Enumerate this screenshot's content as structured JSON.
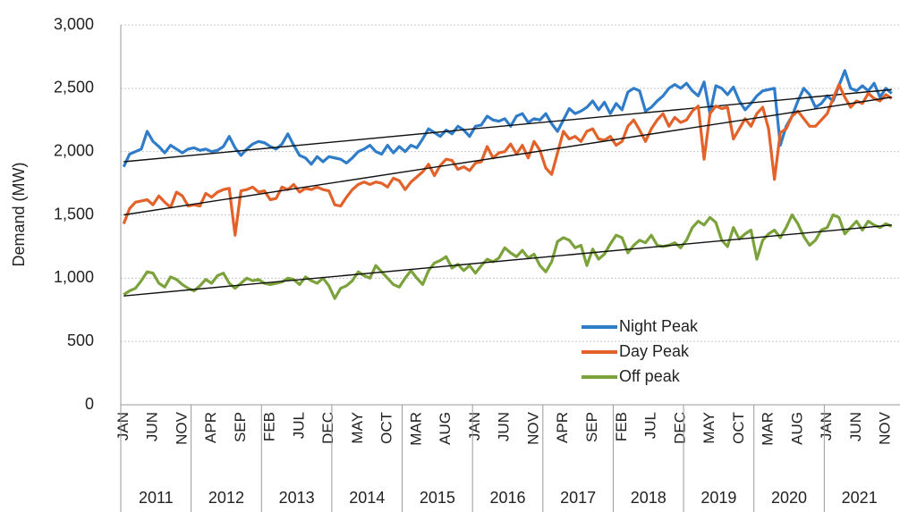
{
  "chart_data": {
    "type": "line",
    "y_label": "Demand (MW)",
    "categories": [
      "JAN",
      null,
      null,
      null,
      null,
      "JUN",
      null,
      null,
      null,
      null,
      "NOV",
      null,
      null,
      null,
      null,
      "APR",
      null,
      null,
      null,
      null,
      "SEP",
      null,
      null,
      null,
      null,
      "FEB",
      null,
      null,
      null,
      null,
      "JUL",
      null,
      null,
      null,
      null,
      "DEC",
      null,
      null,
      null,
      null,
      "MAY",
      null,
      null,
      null,
      null,
      "OCT",
      null,
      null,
      null,
      null,
      "MAR",
      null,
      null,
      null,
      null,
      "AUG",
      null,
      null,
      null,
      null,
      "JAN",
      null,
      null,
      null,
      null,
      "JUN",
      null,
      null,
      null,
      null,
      "NOV",
      null,
      null,
      null,
      null,
      "APR",
      null,
      null,
      null,
      null,
      "SEP",
      null,
      null,
      null,
      null,
      "FEB",
      null,
      null,
      null,
      null,
      "JUL",
      null,
      null,
      null,
      null,
      "DEC",
      null,
      null,
      null,
      null,
      "MAY",
      null,
      null,
      null,
      null,
      "OCT",
      null,
      null,
      null,
      null,
      "MAR",
      null,
      null,
      null,
      null,
      "AUG",
      null,
      null,
      null,
      null,
      "JAN",
      null,
      null,
      null,
      null,
      "JUN",
      null,
      null,
      null,
      null,
      "NOV",
      null
    ],
    "year_groups": [
      "2011",
      "2012",
      "2013",
      "2014",
      "2015",
      "2016",
      "2017",
      "2018",
      "2019",
      "2020",
      "2021"
    ],
    "series": [
      {
        "name": "Night Peak",
        "color": "#2f7cc9",
        "trendline": [
          1920,
          2490
        ],
        "values": [
          1880,
          1980,
          2000,
          2020,
          2160,
          2080,
          2040,
          1990,
          2050,
          2020,
          1990,
          2020,
          2030,
          2010,
          2020,
          2000,
          2010,
          2040,
          2120,
          2030,
          1970,
          2020,
          2060,
          2080,
          2070,
          2040,
          2020,
          2060,
          2140,
          2050,
          1970,
          1950,
          1900,
          1960,
          1920,
          1960,
          1950,
          1940,
          1910,
          1950,
          2000,
          2020,
          2050,
          2000,
          1980,
          2050,
          1990,
          2040,
          2000,
          2050,
          2030,
          2100,
          2180,
          2150,
          2120,
          2170,
          2140,
          2200,
          2170,
          2120,
          2200,
          2210,
          2280,
          2250,
          2240,
          2260,
          2200,
          2280,
          2300,
          2230,
          2260,
          2250,
          2300,
          2220,
          2160,
          2250,
          2340,
          2300,
          2320,
          2350,
          2400,
          2330,
          2390,
          2300,
          2380,
          2330,
          2470,
          2500,
          2480,
          2320,
          2350,
          2400,
          2440,
          2500,
          2530,
          2500,
          2540,
          2480,
          2440,
          2550,
          2300,
          2520,
          2500,
          2450,
          2510,
          2400,
          2330,
          2380,
          2440,
          2480,
          2490,
          2500,
          2050,
          2200,
          2280,
          2400,
          2500,
          2450,
          2350,
          2380,
          2440,
          2400,
          2520,
          2640,
          2500,
          2480,
          2520,
          2480,
          2540,
          2430,
          2500,
          2460
        ]
      },
      {
        "name": "Day Peak",
        "color": "#e2622a",
        "trendline": [
          1500,
          2430
        ],
        "values": [
          1430,
          1550,
          1600,
          1610,
          1620,
          1580,
          1650,
          1600,
          1560,
          1680,
          1650,
          1570,
          1580,
          1570,
          1670,
          1640,
          1680,
          1700,
          1710,
          1340,
          1690,
          1700,
          1720,
          1680,
          1690,
          1620,
          1630,
          1720,
          1700,
          1740,
          1680,
          1710,
          1700,
          1720,
          1700,
          1690,
          1580,
          1570,
          1640,
          1700,
          1740,
          1760,
          1740,
          1760,
          1750,
          1720,
          1790,
          1770,
          1700,
          1760,
          1800,
          1840,
          1900,
          1810,
          1890,
          1940,
          1930,
          1860,
          1880,
          1850,
          1910,
          1920,
          2040,
          1950,
          1990,
          2000,
          2060,
          1980,
          2050,
          1950,
          2080,
          2010,
          1870,
          1820,
          1990,
          2160,
          2100,
          2120,
          2080,
          2160,
          2180,
          2100,
          2090,
          2120,
          2050,
          2080,
          2200,
          2250,
          2170,
          2080,
          2180,
          2250,
          2300,
          2200,
          2270,
          2230,
          2250,
          2320,
          2360,
          1940,
          2300,
          2360,
          2340,
          2350,
          2100,
          2180,
          2260,
          2200,
          2300,
          2350,
          2180,
          1780,
          2150,
          2180,
          2280,
          2320,
          2260,
          2200,
          2200,
          2250,
          2300,
          2420,
          2530,
          2430,
          2350,
          2400,
          2380,
          2460,
          2420,
          2400,
          2450,
          2420
        ]
      },
      {
        "name": "Off peak",
        "color": "#7ba23b",
        "trendline": [
          860,
          1420
        ],
        "values": [
          870,
          900,
          920,
          980,
          1050,
          1040,
          960,
          930,
          1010,
          990,
          950,
          920,
          900,
          940,
          990,
          960,
          1020,
          1040,
          960,
          920,
          960,
          1000,
          980,
          990,
          960,
          950,
          960,
          970,
          1000,
          990,
          950,
          1010,
          980,
          960,
          1000,
          940,
          840,
          920,
          940,
          980,
          1050,
          1020,
          1000,
          1100,
          1050,
          1000,
          950,
          930,
          1000,
          1060,
          1000,
          950,
          1060,
          1120,
          1140,
          1170,
          1080,
          1110,
          1060,
          1100,
          1040,
          1100,
          1150,
          1130,
          1160,
          1240,
          1200,
          1170,
          1220,
          1160,
          1190,
          1100,
          1050,
          1130,
          1290,
          1320,
          1300,
          1240,
          1260,
          1100,
          1230,
          1150,
          1190,
          1270,
          1340,
          1320,
          1200,
          1260,
          1300,
          1280,
          1340,
          1260,
          1250,
          1260,
          1280,
          1240,
          1300,
          1400,
          1450,
          1420,
          1480,
          1440,
          1300,
          1250,
          1400,
          1310,
          1350,
          1380,
          1150,
          1300,
          1350,
          1380,
          1320,
          1400,
          1500,
          1430,
          1330,
          1260,
          1300,
          1380,
          1400,
          1500,
          1480,
          1350,
          1400,
          1450,
          1380,
          1450,
          1420,
          1400,
          1430,
          1410
        ]
      }
    ],
    "ylim": [
      0,
      3000
    ],
    "yticks": [
      0,
      500,
      {
        "value": 1000,
        "label": "1,000"
      },
      {
        "value": 1500,
        "label": "1,500"
      },
      {
        "value": 2000,
        "label": "2,000"
      },
      {
        "value": 2500,
        "label": "2,500"
      },
      {
        "value": 3000,
        "label": "3,000"
      }
    ],
    "grid": true,
    "legend": "lower right"
  }
}
